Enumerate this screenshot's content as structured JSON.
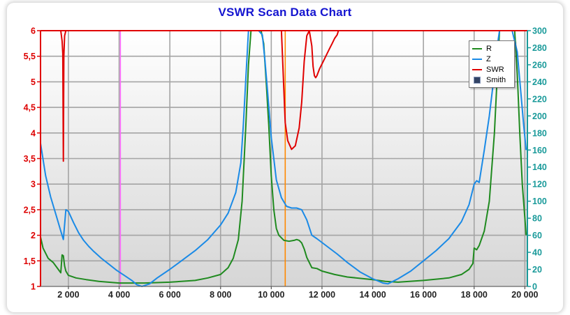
{
  "chart_data": {
    "type": "line",
    "title": "VSWR Scan Data Chart",
    "xlim": [
      900,
      20100
    ],
    "ylim_left": [
      1,
      6
    ],
    "ylim_right": [
      0,
      300
    ],
    "x_ticks": [
      2000,
      4000,
      6000,
      8000,
      10000,
      12000,
      14000,
      16000,
      18000,
      20000
    ],
    "x_tick_labels": [
      "2 000",
      "4 000",
      "6 000",
      "8 000",
      "10 000",
      "12 000",
      "14 000",
      "16 000",
      "18 000",
      "20 000"
    ],
    "y_left_ticks": [
      1,
      1.5,
      2,
      2.5,
      3,
      3.5,
      4,
      4.5,
      5,
      5.5,
      6
    ],
    "y_left_tick_labels": [
      "1",
      "1,5",
      "2",
      "2,5",
      "3",
      "3,5",
      "4",
      "4,5",
      "5",
      "5,5",
      "6"
    ],
    "y_right_ticks": [
      0,
      20,
      40,
      60,
      80,
      100,
      120,
      140,
      160,
      180,
      200,
      220,
      240,
      260,
      280,
      300
    ],
    "y_right_tick_labels": [
      "0",
      "20",
      "40",
      "60",
      "80",
      "100",
      "120",
      "140",
      "160",
      "180",
      "200",
      "220",
      "240",
      "260",
      "280",
      "300"
    ],
    "grid": true,
    "legend_position": "top-right",
    "markers": [
      {
        "x": 4050,
        "color": "#ff66ff"
      },
      {
        "x": 10550,
        "color": "#ff8800"
      }
    ],
    "series": [
      {
        "name": "SWR",
        "axis": "left",
        "color": "#e00000",
        "x": [
          900,
          1700,
          1750,
          1780,
          1800,
          1820,
          1850,
          1900,
          10400,
          10550,
          10650,
          10800,
          10950,
          11100,
          11200,
          11300,
          11400,
          11500,
          11600,
          11650,
          11700,
          11750,
          11800,
          11900,
          12000,
          12100,
          12200,
          12300,
          12400,
          12500,
          12600,
          12650,
          20100
        ],
        "y": [
          6,
          6,
          5.8,
          5.55,
          3.45,
          5.5,
          5.9,
          6,
          6,
          4.2,
          3.85,
          3.68,
          3.75,
          4.1,
          4.6,
          5.4,
          5.9,
          6,
          5.7,
          5.3,
          5.12,
          5.08,
          5.12,
          5.25,
          5.35,
          5.45,
          5.55,
          5.65,
          5.75,
          5.85,
          5.92,
          6,
          6
        ]
      },
      {
        "name": "Z",
        "axis": "right",
        "color": "#1a8ae6",
        "x": [
          900,
          1100,
          1300,
          1500,
          1700,
          1800,
          1900,
          2000,
          2200,
          2400,
          2600,
          2800,
          3000,
          3300,
          3600,
          3900,
          4200,
          4500,
          4700,
          4900,
          5200,
          5500,
          6000,
          6500,
          7000,
          7500,
          8000,
          8300,
          8600,
          8800,
          8900,
          9000,
          9100,
          9500,
          9650,
          9750,
          9850,
          10000,
          10200,
          10400,
          10600,
          10800,
          11000,
          11200,
          11400,
          11600,
          11800,
          12200,
          12600,
          13000,
          13500,
          14000,
          14400,
          14600,
          15000,
          15500,
          16000,
          16500,
          17000,
          17500,
          17800,
          18000,
          18100,
          18200,
          18400,
          18600,
          18800,
          18950,
          19000,
          19500,
          19700,
          19850,
          19950,
          20050
        ],
        "y": [
          168,
          130,
          105,
          85,
          65,
          55,
          90,
          88,
          75,
          63,
          54,
          47,
          41,
          33,
          26,
          19,
          13,
          7,
          2,
          0,
          3,
          10,
          20,
          31,
          42,
          55,
          72,
          86,
          110,
          145,
          190,
          245,
          300,
          300,
          295,
          265,
          230,
          175,
          125,
          104,
          94,
          92,
          92,
          90,
          78,
          60,
          56,
          47,
          38,
          28,
          17,
          9,
          4,
          3,
          9,
          18,
          30,
          42,
          56,
          76,
          96,
          120,
          124,
          122,
          160,
          200,
          250,
          290,
          300,
          300,
          275,
          225,
          190,
          160
        ]
      },
      {
        "name": "R",
        "axis": "right",
        "color": "#1f8a1f",
        "x": [
          900,
          1000,
          1200,
          1400,
          1600,
          1700,
          1750,
          1800,
          1850,
          1900,
          2000,
          2300,
          2700,
          3200,
          4000,
          5000,
          6000,
          7000,
          7500,
          8000,
          8300,
          8500,
          8700,
          8850,
          9000,
          9100,
          9200,
          9600,
          9700,
          9800,
          9900,
          10000,
          10100,
          10200,
          10300,
          10500,
          10700,
          10900,
          11000,
          11100,
          11200,
          11300,
          11400,
          11500,
          11600,
          11800,
          12000,
          12500,
          13000,
          14000,
          14500,
          15000,
          16000,
          17000,
          17500,
          17800,
          17950,
          18000,
          18100,
          18200,
          18400,
          18600,
          18800,
          18900,
          19000,
          19600,
          19700,
          19800,
          19900,
          20000,
          20050
        ],
        "y": [
          58,
          45,
          33,
          28,
          20,
          16,
          37,
          36,
          24,
          18,
          13,
          10,
          8,
          6,
          4,
          4,
          5,
          7,
          10,
          14,
          22,
          33,
          55,
          100,
          190,
          260,
          300,
          300,
          285,
          240,
          190,
          130,
          90,
          68,
          60,
          54,
          53,
          54,
          55,
          54,
          51,
          44,
          34,
          28,
          22,
          21,
          18,
          14,
          11,
          8,
          6,
          5,
          7,
          10,
          14,
          20,
          27,
          45,
          43,
          48,
          65,
          100,
          180,
          240,
          300,
          300,
          250,
          180,
          120,
          80,
          60
        ]
      }
    ],
    "legend_entries": [
      {
        "label": "R",
        "color": "#1f8a1f"
      },
      {
        "label": "Z",
        "color": "#1a8ae6"
      },
      {
        "label": "SWR",
        "color": "#e00000"
      },
      {
        "label": "Smith",
        "color": "#334466"
      }
    ]
  }
}
